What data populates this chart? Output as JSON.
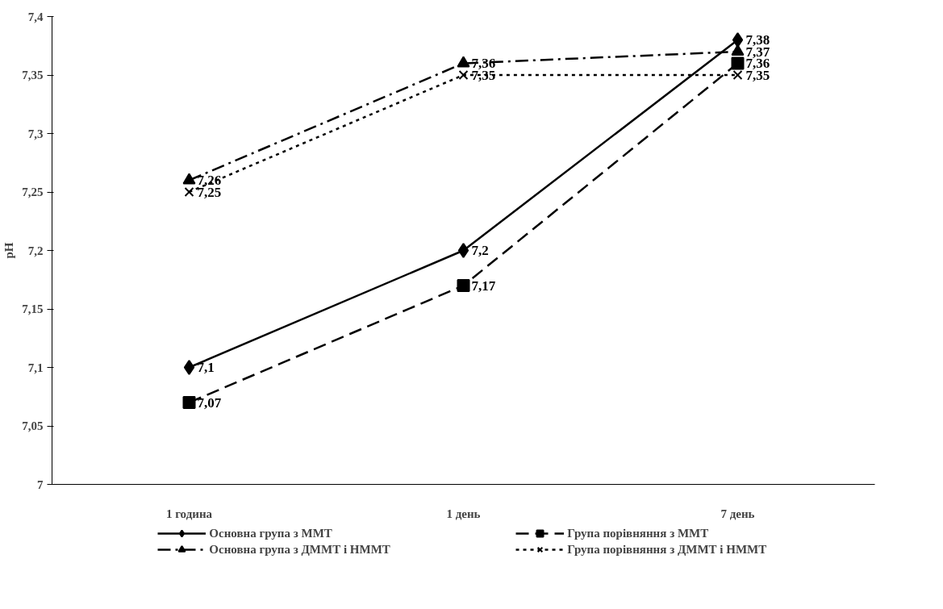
{
  "chart_data": {
    "type": "line",
    "ylabel": "pH",
    "categories": [
      "1 година",
      "1 день",
      "7 день"
    ],
    "ylim": [
      7,
      7.4
    ],
    "yticks": [
      7,
      {
        "value": 7.05,
        "label": "7,05"
      },
      {
        "value": 7.1,
        "label": "7,1"
      },
      {
        "value": 7.15,
        "label": "7,15"
      },
      {
        "value": 7.2,
        "label": "7,2"
      },
      {
        "value": 7.25,
        "label": "7,25"
      },
      {
        "value": 7.3,
        "label": "7,3"
      },
      {
        "value": 7.35,
        "label": "7,35"
      },
      {
        "value": 7.4,
        "label": "7,4"
      }
    ],
    "grid": false,
    "legend": "bottom",
    "series": [
      {
        "name": "Основна група з ММТ",
        "color": "#000000",
        "values": [
          7.1,
          7.2,
          7.38
        ],
        "marker": "diamond",
        "line_style": "solid",
        "value_labels": [
          "7,1",
          "7,2",
          "7,38"
        ]
      },
      {
        "name": "Група порівняння з ММТ",
        "color": "#000000",
        "values": [
          7.07,
          7.17,
          7.36
        ],
        "marker": "square",
        "line_style": "dashed",
        "value_labels": [
          "7,07",
          "7,17",
          "7,36"
        ]
      },
      {
        "name": "Основна група з ДММТ і НММТ",
        "color": "#000000",
        "values": [
          7.26,
          7.36,
          7.37
        ],
        "marker": "triangle",
        "line_style": "dashdot",
        "value_labels": [
          "7,26",
          "7,36",
          "7,37"
        ]
      },
      {
        "name": "Група порівняння з ДММТ і НММТ",
        "color": "#000000",
        "values": [
          7.25,
          7.35,
          7.35
        ],
        "marker": "cross",
        "line_style": "dotted",
        "value_labels": [
          "7,25",
          "7,35",
          "7,35"
        ]
      }
    ]
  }
}
